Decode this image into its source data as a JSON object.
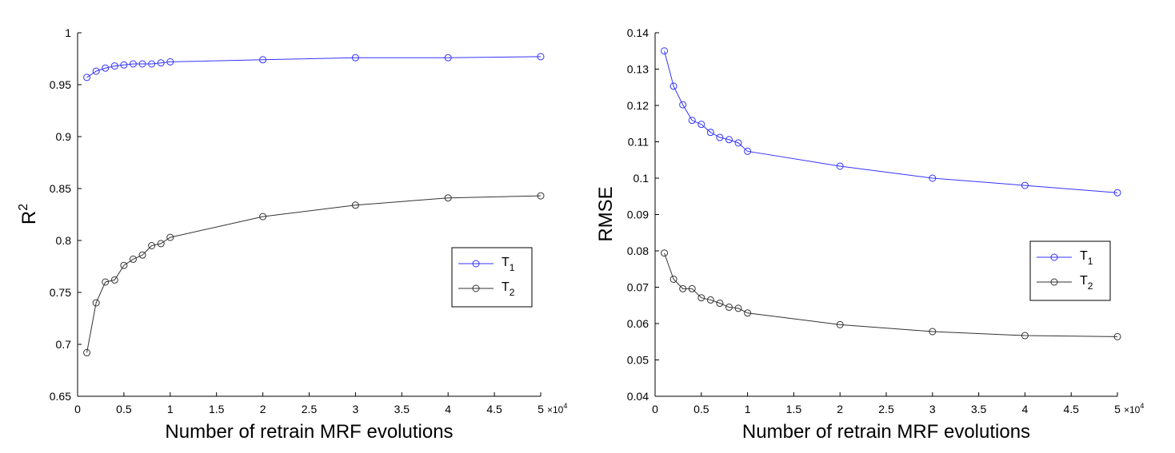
{
  "chart_data": [
    {
      "type": "line",
      "title": "",
      "xlabel": "Number of retrain MRF evolutions",
      "ylabel_base": "R",
      "ylabel_sup": "2",
      "x_multiplier": "×10",
      "x_multiplier_exp": "4",
      "xlim": [
        0,
        50000
      ],
      "ylim": [
        0.65,
        1.0
      ],
      "x_ticks": [
        0,
        5000,
        10000,
        15000,
        20000,
        25000,
        30000,
        35000,
        40000,
        45000,
        50000
      ],
      "x_tick_labels": [
        "0",
        "0.5",
        "1",
        "1.5",
        "2",
        "2.5",
        "3",
        "3.5",
        "4",
        "4.5",
        "5"
      ],
      "y_ticks": [
        0.65,
        0.7,
        0.75,
        0.8,
        0.85,
        0.9,
        0.95,
        1.0
      ],
      "y_tick_labels": [
        "0.65",
        "0.7",
        "0.75",
        "0.8",
        "0.85",
        "0.9",
        "0.95",
        "1"
      ],
      "x": [
        1000,
        2000,
        3000,
        4000,
        5000,
        6000,
        7000,
        8000,
        9000,
        10000,
        20000,
        30000,
        40000,
        50000
      ],
      "series": [
        {
          "name": "T",
          "sub": "1",
          "color": "#3333ff",
          "values": [
            0.957,
            0.963,
            0.966,
            0.968,
            0.969,
            0.97,
            0.97,
            0.97,
            0.971,
            0.972,
            0.974,
            0.976,
            0.976,
            0.977
          ]
        },
        {
          "name": "T",
          "sub": "2",
          "color": "#333333",
          "values": [
            0.692,
            0.74,
            0.76,
            0.762,
            0.776,
            0.782,
            0.786,
            0.795,
            0.797,
            0.803,
            0.823,
            0.834,
            0.841,
            0.843
          ]
        }
      ],
      "legend": "right"
    },
    {
      "type": "line",
      "title": "",
      "xlabel": "Number of retrain MRF evolutions",
      "ylabel_base": "RMSE",
      "ylabel_sup": "",
      "x_multiplier": "×10",
      "x_multiplier_exp": "4",
      "xlim": [
        0,
        50000
      ],
      "ylim": [
        0.04,
        0.14
      ],
      "x_ticks": [
        0,
        5000,
        10000,
        15000,
        20000,
        25000,
        30000,
        35000,
        40000,
        45000,
        50000
      ],
      "x_tick_labels": [
        "0",
        "0.5",
        "1",
        "1.5",
        "2",
        "2.5",
        "3",
        "3.5",
        "4",
        "4.5",
        "5"
      ],
      "y_ticks": [
        0.04,
        0.05,
        0.06,
        0.07,
        0.08,
        0.09,
        0.1,
        0.11,
        0.12,
        0.13,
        0.14
      ],
      "y_tick_labels": [
        "0.04",
        "0.05",
        "0.06",
        "0.07",
        "0.08",
        "0.09",
        "0.1",
        "0.11",
        "0.12",
        "0.13",
        "0.14"
      ],
      "x": [
        1000,
        2000,
        3000,
        4000,
        5000,
        6000,
        7000,
        8000,
        9000,
        10000,
        20000,
        30000,
        40000,
        50000
      ],
      "series": [
        {
          "name": "T",
          "sub": "1",
          "color": "#3333ff",
          "values": [
            0.135,
            0.1253,
            0.1202,
            0.1159,
            0.1148,
            0.1126,
            0.1112,
            0.1106,
            0.1097,
            0.1074,
            0.1033,
            0.1,
            0.098,
            0.096
          ]
        },
        {
          "name": "T",
          "sub": "2",
          "color": "#333333",
          "values": [
            0.0794,
            0.0722,
            0.0696,
            0.0696,
            0.0671,
            0.0665,
            0.0656,
            0.0645,
            0.0642,
            0.0629,
            0.0597,
            0.0578,
            0.0567,
            0.0564
          ]
        }
      ],
      "legend": "right"
    }
  ]
}
